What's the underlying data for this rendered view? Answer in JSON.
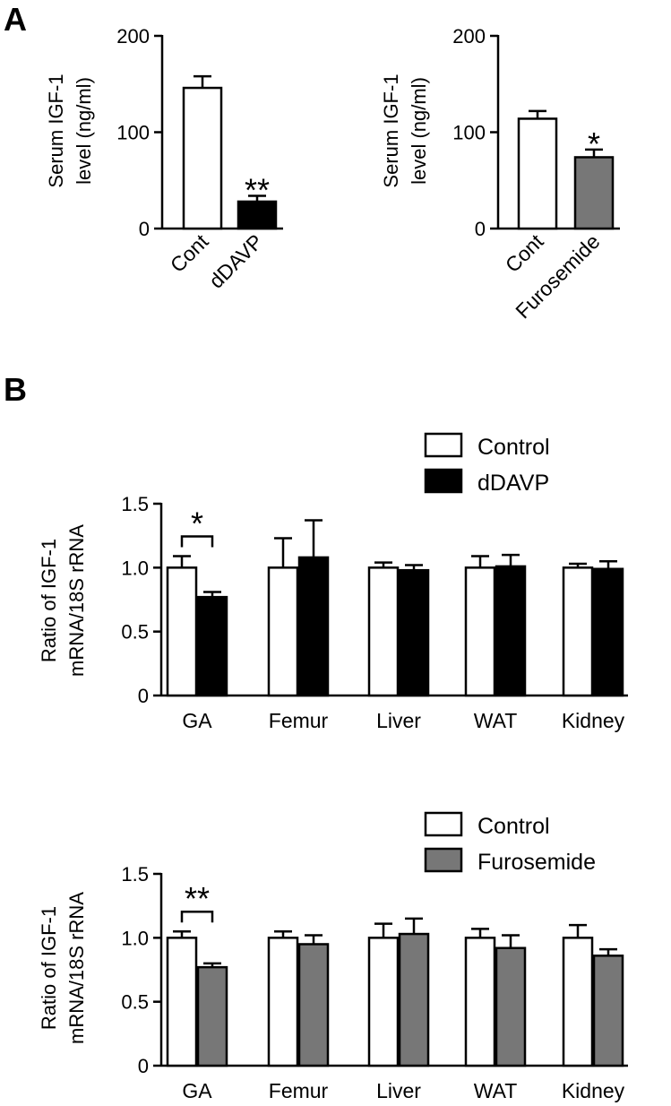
{
  "panel_labels": [
    "A",
    "B"
  ],
  "colors": {
    "control": "#ffffff",
    "dDAVP": "#000000",
    "Furosemide": "#777777",
    "stroke": "#000000"
  },
  "chart_data": [
    {
      "id": "serum_dDAVP",
      "type": "bar",
      "panel": "A",
      "ylabel": [
        "Serum IGF-1",
        "level (ng/ml)"
      ],
      "ylim": [
        0,
        200
      ],
      "yticks": [
        "0",
        "100",
        "200"
      ],
      "ytick_values": [
        0,
        100,
        200
      ],
      "categories": [
        "Cont",
        "dDAVP"
      ],
      "values": [
        146,
        28
      ],
      "errors": [
        12,
        6
      ],
      "bar_colors": [
        "#ffffff",
        "#000000"
      ],
      "significance": [
        "",
        "**"
      ]
    },
    {
      "id": "serum_furosemide",
      "type": "bar",
      "panel": "A",
      "ylabel": [
        "Serum IGF-1",
        "level (ng/ml)"
      ],
      "ylim": [
        0,
        200
      ],
      "yticks": [
        "0",
        "100",
        "200"
      ],
      "ytick_values": [
        0,
        100,
        200
      ],
      "categories": [
        "Cont",
        "Furosemide"
      ],
      "values": [
        114,
        74
      ],
      "errors": [
        8,
        8
      ],
      "bar_colors": [
        "#ffffff",
        "#777777"
      ],
      "significance": [
        "",
        "*"
      ]
    },
    {
      "id": "mrna_dDAVP",
      "type": "bar",
      "panel": "B",
      "ylabel": [
        "Ratio of IGF-1",
        "mRNA/18S rRNA"
      ],
      "ylim": [
        0,
        1.5
      ],
      "yticks": [
        "0",
        "0.5",
        "1.0",
        "1.5"
      ],
      "ytick_values": [
        0,
        0.5,
        1.0,
        1.5
      ],
      "categories": [
        "GA",
        "Femur",
        "Liver",
        "WAT",
        "Kidney"
      ],
      "series": [
        {
          "name": "Control",
          "color": "#ffffff",
          "values": [
            1.0,
            1.0,
            1.0,
            1.0,
            1.0
          ],
          "errors": [
            0.09,
            0.23,
            0.04,
            0.09,
            0.03
          ]
        },
        {
          "name": "dDAVP",
          "color": "#000000",
          "values": [
            0.77,
            1.08,
            0.98,
            1.01,
            0.99
          ],
          "errors": [
            0.04,
            0.29,
            0.04,
            0.09,
            0.06
          ]
        }
      ],
      "brackets": [
        {
          "category": 0,
          "label": "*"
        }
      ],
      "legend": "top-right"
    },
    {
      "id": "mrna_furosemide",
      "type": "bar",
      "panel": "B",
      "ylabel": [
        "Ratio of IGF-1",
        "mRNA/18S rRNA"
      ],
      "ylim": [
        0,
        1.5
      ],
      "yticks": [
        "0",
        "0.5",
        "1.0",
        "1.5"
      ],
      "ytick_values": [
        0,
        0.5,
        1.0,
        1.5
      ],
      "categories": [
        "GA",
        "Femur",
        "Liver",
        "WAT",
        "Kidney"
      ],
      "series": [
        {
          "name": "Control",
          "color": "#ffffff",
          "values": [
            1.0,
            1.0,
            1.0,
            1.0,
            1.0
          ],
          "errors": [
            0.05,
            0.05,
            0.11,
            0.07,
            0.1
          ]
        },
        {
          "name": "Furosemide",
          "color": "#777777",
          "values": [
            0.77,
            0.95,
            1.03,
            0.92,
            0.86
          ],
          "errors": [
            0.03,
            0.07,
            0.12,
            0.1,
            0.05
          ]
        }
      ],
      "brackets": [
        {
          "category": 0,
          "label": "**"
        }
      ],
      "legend": "top-right"
    }
  ]
}
